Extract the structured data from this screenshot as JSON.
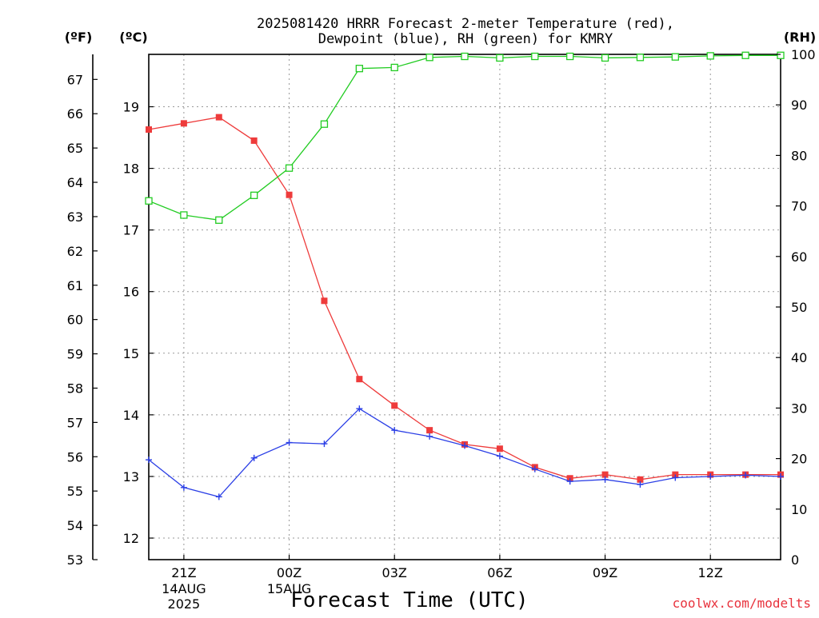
{
  "chart_data": {
    "type": "line",
    "title": {
      "line1": "2025081420 HRRR Forecast 2-meter Temperature (red),",
      "line2": "Dewpoint (blue), RH (green) for KMRY"
    },
    "units": {
      "fahrenheit": "(ºF)",
      "celsius": "(ºC)",
      "rh": "(RH)"
    },
    "xlabel": "Forecast Time (UTC)",
    "x_ticks": [
      {
        "hour": 1,
        "label": "21Z",
        "sub1": "14AUG",
        "sub2": "2025"
      },
      {
        "hour": 4,
        "label": "00Z",
        "sub1": "15AUG",
        "sub2": ""
      },
      {
        "hour": 7,
        "label": "03Z",
        "sub1": "",
        "sub2": ""
      },
      {
        "hour": 10,
        "label": "06Z",
        "sub1": "",
        "sub2": ""
      },
      {
        "hour": 13,
        "label": "09Z",
        "sub1": "",
        "sub2": ""
      },
      {
        "hour": 16,
        "label": "12Z",
        "sub1": "",
        "sub2": ""
      }
    ],
    "x": [
      "20Z",
      "21Z",
      "22Z",
      "23Z",
      "00Z",
      "01Z",
      "02Z",
      "03Z",
      "04Z",
      "05Z",
      "06Z",
      "07Z",
      "08Z",
      "09Z",
      "10Z",
      "11Z",
      "12Z",
      "13Z",
      "14Z"
    ],
    "x_range_hours": [
      0,
      18
    ],
    "celsius_axis": {
      "range": [
        11.65,
        19.85
      ],
      "ticks": [
        12,
        13,
        14,
        15,
        16,
        17,
        18,
        19
      ]
    },
    "fahrenheit_axis": {
      "range": [
        53,
        67.73
      ],
      "ticks": [
        53,
        54,
        55,
        56,
        57,
        58,
        59,
        60,
        61,
        62,
        63,
        64,
        65,
        66,
        67
      ]
    },
    "rh_axis": {
      "range": [
        0,
        100
      ],
      "ticks": [
        0,
        10,
        20,
        30,
        40,
        50,
        60,
        70,
        80,
        90,
        100
      ]
    },
    "grid": true,
    "series": [
      {
        "name": "Temperature",
        "axis": "celsius",
        "color": "#ee3b3b",
        "marker": "filled-square",
        "values": [
          18.63,
          18.73,
          18.83,
          18.45,
          17.57,
          15.85,
          14.58,
          14.15,
          13.75,
          13.52,
          13.45,
          13.15,
          12.97,
          13.03,
          12.95,
          13.03,
          13.03,
          13.03,
          13.03
        ]
      },
      {
        "name": "Dewpoint",
        "axis": "celsius",
        "color": "#2b3fe6",
        "marker": "plus",
        "values": [
          13.27,
          12.82,
          12.67,
          13.3,
          13.55,
          13.53,
          14.1,
          13.75,
          13.65,
          13.5,
          13.33,
          13.12,
          12.92,
          12.95,
          12.87,
          12.98,
          13.0,
          13.02,
          13.0
        ]
      },
      {
        "name": "RH",
        "axis": "rh",
        "color": "#22cc22",
        "marker": "open-square",
        "values": [
          71.0,
          68.2,
          67.2,
          72.1,
          77.5,
          86.2,
          97.2,
          97.4,
          99.4,
          99.6,
          99.3,
          99.6,
          99.6,
          99.3,
          99.4,
          99.5,
          99.7,
          99.8,
          99.8
        ]
      }
    ]
  },
  "credit": "coolwx.com/modelts"
}
